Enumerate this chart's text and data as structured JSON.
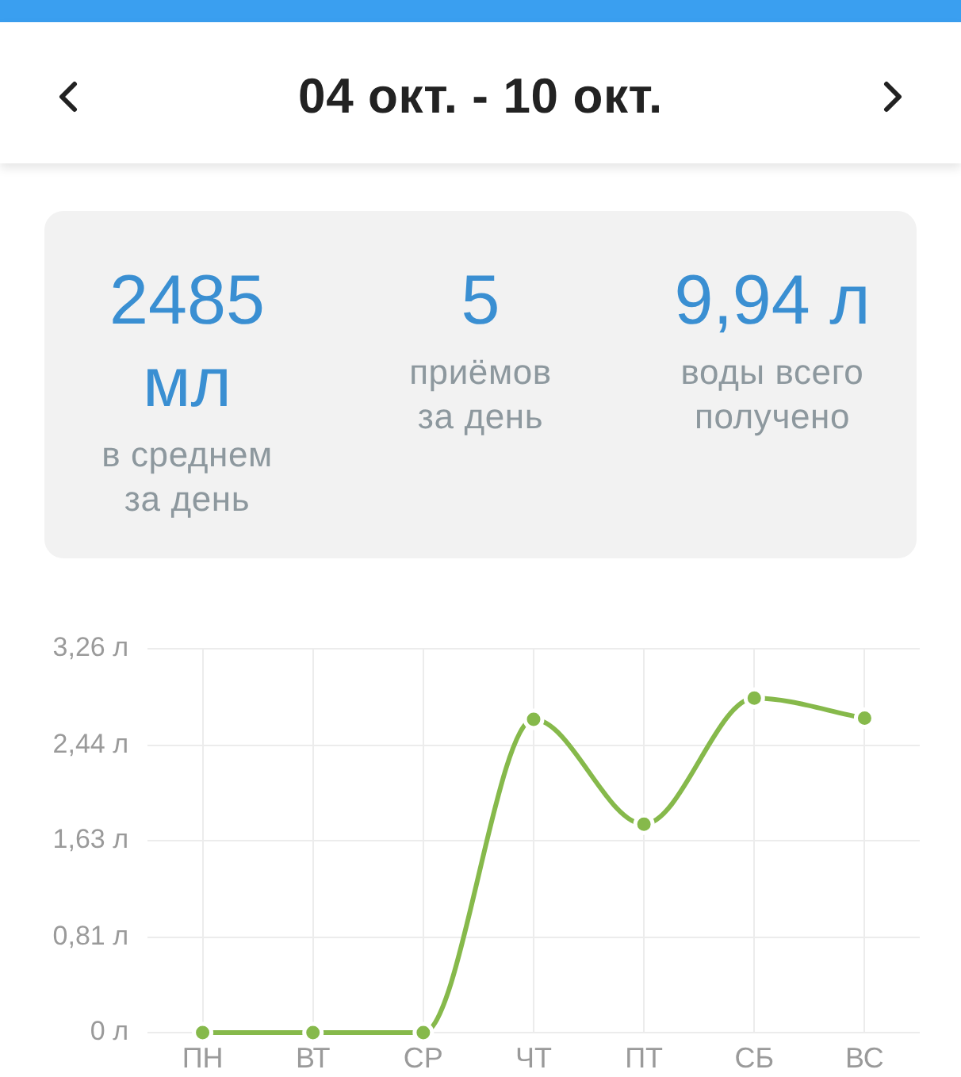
{
  "chart_data": [
    {
      "type": "other",
      "title": "04 окт. - 10 окт.",
      "annotations": [
        "2485 мл",
        "в среднем за день",
        "5",
        "приёмов за день",
        "9,94 л",
        "воды всего получено"
      ]
    },
    {
      "type": "line",
      "categories": [
        "ПН",
        "ВТ",
        "СР",
        "ЧТ",
        "ПТ",
        "СБ",
        "ВС"
      ],
      "series": [
        {
          "color": "#86b94b",
          "values": [
            0,
            0,
            0,
            2.66,
            1.77,
            2.84,
            2.67
          ]
        }
      ],
      "ylim": [
        0,
        3.26
      ],
      "yticks": [
        {
          "value": 0,
          "label": "0 л"
        },
        {
          "value": 0.81,
          "label": "0,81 л"
        },
        {
          "value": 1.63,
          "label": "1,63 л"
        },
        {
          "value": 2.44,
          "label": "2,44 л"
        },
        {
          "value": 3.26,
          "label": "3,26 л"
        }
      ],
      "grid": true,
      "marker": "circle"
    }
  ]
}
